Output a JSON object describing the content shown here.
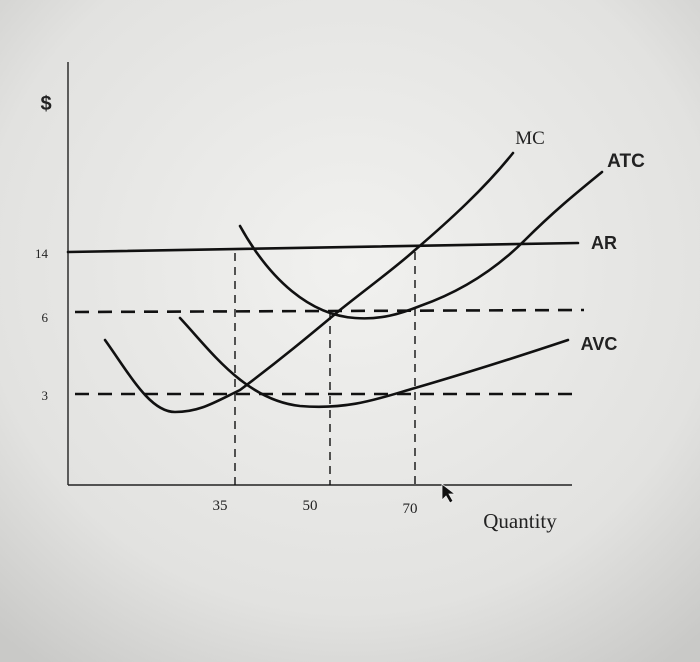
{
  "y_axis": {
    "label": "$",
    "ticks": [
      14,
      6,
      3
    ]
  },
  "x_axis": {
    "label": "Quantity",
    "ticks": [
      35,
      50,
      70
    ]
  },
  "curves": {
    "mc": "MC",
    "atc": "ATC",
    "ar": "AR",
    "avc": "AVC"
  }
}
